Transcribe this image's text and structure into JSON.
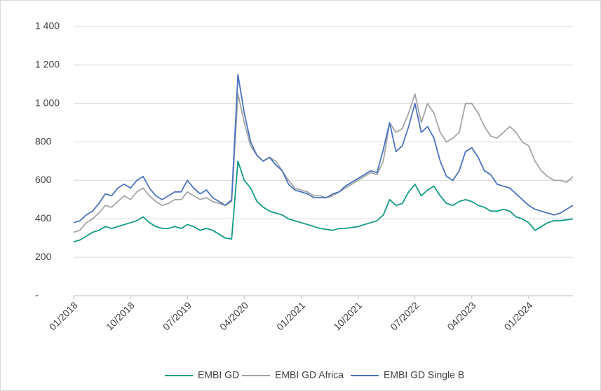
{
  "chart_data": {
    "type": "line",
    "x": [
      "01/2018",
      "02/2018",
      "03/2018",
      "04/2018",
      "05/2018",
      "06/2018",
      "07/2018",
      "08/2018",
      "09/2018",
      "10/2018",
      "11/2018",
      "12/2018",
      "01/2019",
      "02/2019",
      "03/2019",
      "04/2019",
      "05/2019",
      "06/2019",
      "07/2019",
      "08/2019",
      "09/2019",
      "10/2019",
      "11/2019",
      "12/2019",
      "01/2020",
      "02/2020",
      "03/2020",
      "04/2020",
      "05/2020",
      "06/2020",
      "07/2020",
      "08/2020",
      "09/2020",
      "10/2020",
      "11/2020",
      "12/2020",
      "01/2021",
      "02/2021",
      "03/2021",
      "04/2021",
      "05/2021",
      "06/2021",
      "07/2021",
      "08/2021",
      "09/2021",
      "10/2021",
      "11/2021",
      "12/2021",
      "01/2022",
      "02/2022",
      "03/2022",
      "04/2022",
      "05/2022",
      "06/2022",
      "07/2022",
      "08/2022",
      "09/2022",
      "10/2022",
      "11/2022",
      "12/2022",
      "01/2023",
      "02/2023",
      "03/2023",
      "04/2023",
      "05/2023",
      "06/2023",
      "07/2023",
      "08/2023",
      "09/2023",
      "10/2023",
      "11/2023",
      "12/2023",
      "01/2024",
      "02/2024",
      "03/2024",
      "04/2024",
      "05/2024",
      "06/2024",
      "07/2024",
      "08/2024"
    ],
    "series": [
      {
        "name": "EMBI GD",
        "color": "#129b87",
        "values": [
          280,
          290,
          310,
          330,
          340,
          360,
          350,
          360,
          370,
          380,
          390,
          410,
          380,
          360,
          350,
          350,
          360,
          350,
          370,
          360,
          340,
          350,
          340,
          320,
          300,
          295,
          700,
          600,
          560,
          490,
          460,
          440,
          430,
          420,
          400,
          390,
          380,
          370,
          360,
          350,
          345,
          340,
          350,
          350,
          355,
          360,
          370,
          380,
          390,
          420,
          500,
          470,
          480,
          540,
          580,
          520,
          550,
          570,
          520,
          480,
          470,
          490,
          500,
          490,
          470,
          460,
          440,
          440,
          450,
          440,
          410,
          400,
          380,
          340,
          360,
          380,
          390,
          390,
          395,
          400
        ]
      },
      {
        "name": "EMBI GD Africa",
        "color": "#a5a5a5",
        "values": [
          330,
          340,
          380,
          400,
          430,
          470,
          460,
          490,
          520,
          500,
          540,
          560,
          520,
          490,
          470,
          480,
          500,
          500,
          540,
          520,
          500,
          510,
          490,
          480,
          470,
          490,
          1050,
          900,
          780,
          730,
          700,
          720,
          700,
          650,
          600,
          560,
          550,
          540,
          520,
          520,
          510,
          520,
          540,
          560,
          580,
          600,
          620,
          640,
          630,
          700,
          900,
          850,
          870,
          950,
          1050,
          900,
          1000,
          950,
          850,
          800,
          820,
          850,
          1000,
          1000,
          950,
          880,
          830,
          820,
          850,
          880,
          850,
          800,
          780,
          700,
          650,
          620,
          600,
          600,
          590,
          620
        ]
      },
      {
        "name": "EMBI GD Single B",
        "color": "#4a72c0",
        "values": [
          380,
          390,
          420,
          440,
          480,
          530,
          520,
          560,
          580,
          560,
          600,
          620,
          560,
          520,
          500,
          520,
          540,
          540,
          600,
          560,
          530,
          550,
          510,
          490,
          470,
          500,
          1150,
          950,
          800,
          730,
          700,
          720,
          680,
          650,
          580,
          550,
          540,
          530,
          510,
          510,
          510,
          530,
          540,
          570,
          590,
          610,
          630,
          650,
          640,
          760,
          900,
          750,
          780,
          880,
          1000,
          850,
          880,
          820,
          700,
          620,
          600,
          650,
          750,
          770,
          720,
          650,
          630,
          580,
          570,
          560,
          530,
          500,
          470,
          450,
          440,
          430,
          420,
          430,
          450,
          470
        ]
      }
    ],
    "xticks": [
      "01/2018",
      "10/2018",
      "07/2019",
      "04/2020",
      "01/2021",
      "10/2021",
      "07/2022",
      "04/2023",
      "01/2024"
    ],
    "ylim": [
      0,
      1400
    ],
    "yticks": [
      {
        "value": 0,
        "label": "-"
      },
      200,
      400,
      600,
      800,
      1000,
      {
        "value": 1000,
        "label": "1 000"
      },
      {
        "value": 1200,
        "label": "1 200"
      },
      {
        "value": 1400,
        "label": "1 400"
      }
    ],
    "grid": true,
    "legend": "bottom"
  }
}
